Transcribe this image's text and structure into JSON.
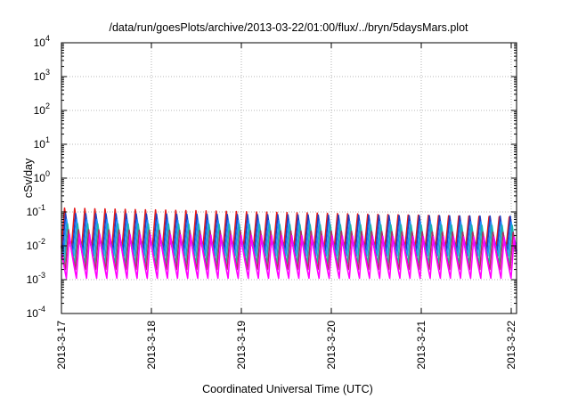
{
  "chart_data": {
    "type": "line",
    "title": "/data/run/goesPlots/archive/2013-03-22/01:00/flux/../bryn/5daysMars.plot",
    "xlabel": "Coordinated Universal Time (UTC)",
    "ylabel": "cSv/day",
    "y_scale": "log",
    "ylim": [
      0.0001,
      10000
    ],
    "y_ticks": [
      {
        "base": "10",
        "exp": "-4"
      },
      {
        "base": "10",
        "exp": "-3"
      },
      {
        "base": "10",
        "exp": "-2"
      },
      {
        "base": "10",
        "exp": "-1"
      },
      {
        "base": "10",
        "exp": "0"
      },
      {
        "base": "10",
        "exp": "1"
      },
      {
        "base": "10",
        "exp": "2"
      },
      {
        "base": "10",
        "exp": "3"
      },
      {
        "base": "10",
        "exp": "4"
      }
    ],
    "xlim": [
      "2013-03-17",
      "2013-03-22 01:00"
    ],
    "x_ticks": [
      "2013-3-17",
      "2013-3-18",
      "2013-3-19",
      "2013-3-20",
      "2013-3-21",
      "2013-3-22"
    ],
    "grid": true,
    "pattern": {
      "description": "sawtooth series repeating roughly every 2.7 hours",
      "cycles_per_day": 8.9
    },
    "series": [
      {
        "color": "#e31a1c",
        "peak_start": 0.13,
        "peak_end": 0.07,
        "trough": 0.009
      },
      {
        "color": "#1f3fbf",
        "peak_start": 0.09,
        "peak_end": 0.075,
        "trough": 0.007
      },
      {
        "color": "#1e90ff",
        "peak_start": 0.06,
        "peak_end": 0.05,
        "trough": 0.005
      },
      {
        "color": "#20b2aa",
        "peak_start": 0.045,
        "peak_end": 0.04,
        "trough": 0.003
      },
      {
        "color": "#b03060",
        "peak_start": 0.03,
        "peak_end": 0.025,
        "trough": 0.002
      },
      {
        "color": "#ff00ff",
        "peak_start": 0.022,
        "peak_end": 0.018,
        "trough": 0.0011
      }
    ]
  }
}
